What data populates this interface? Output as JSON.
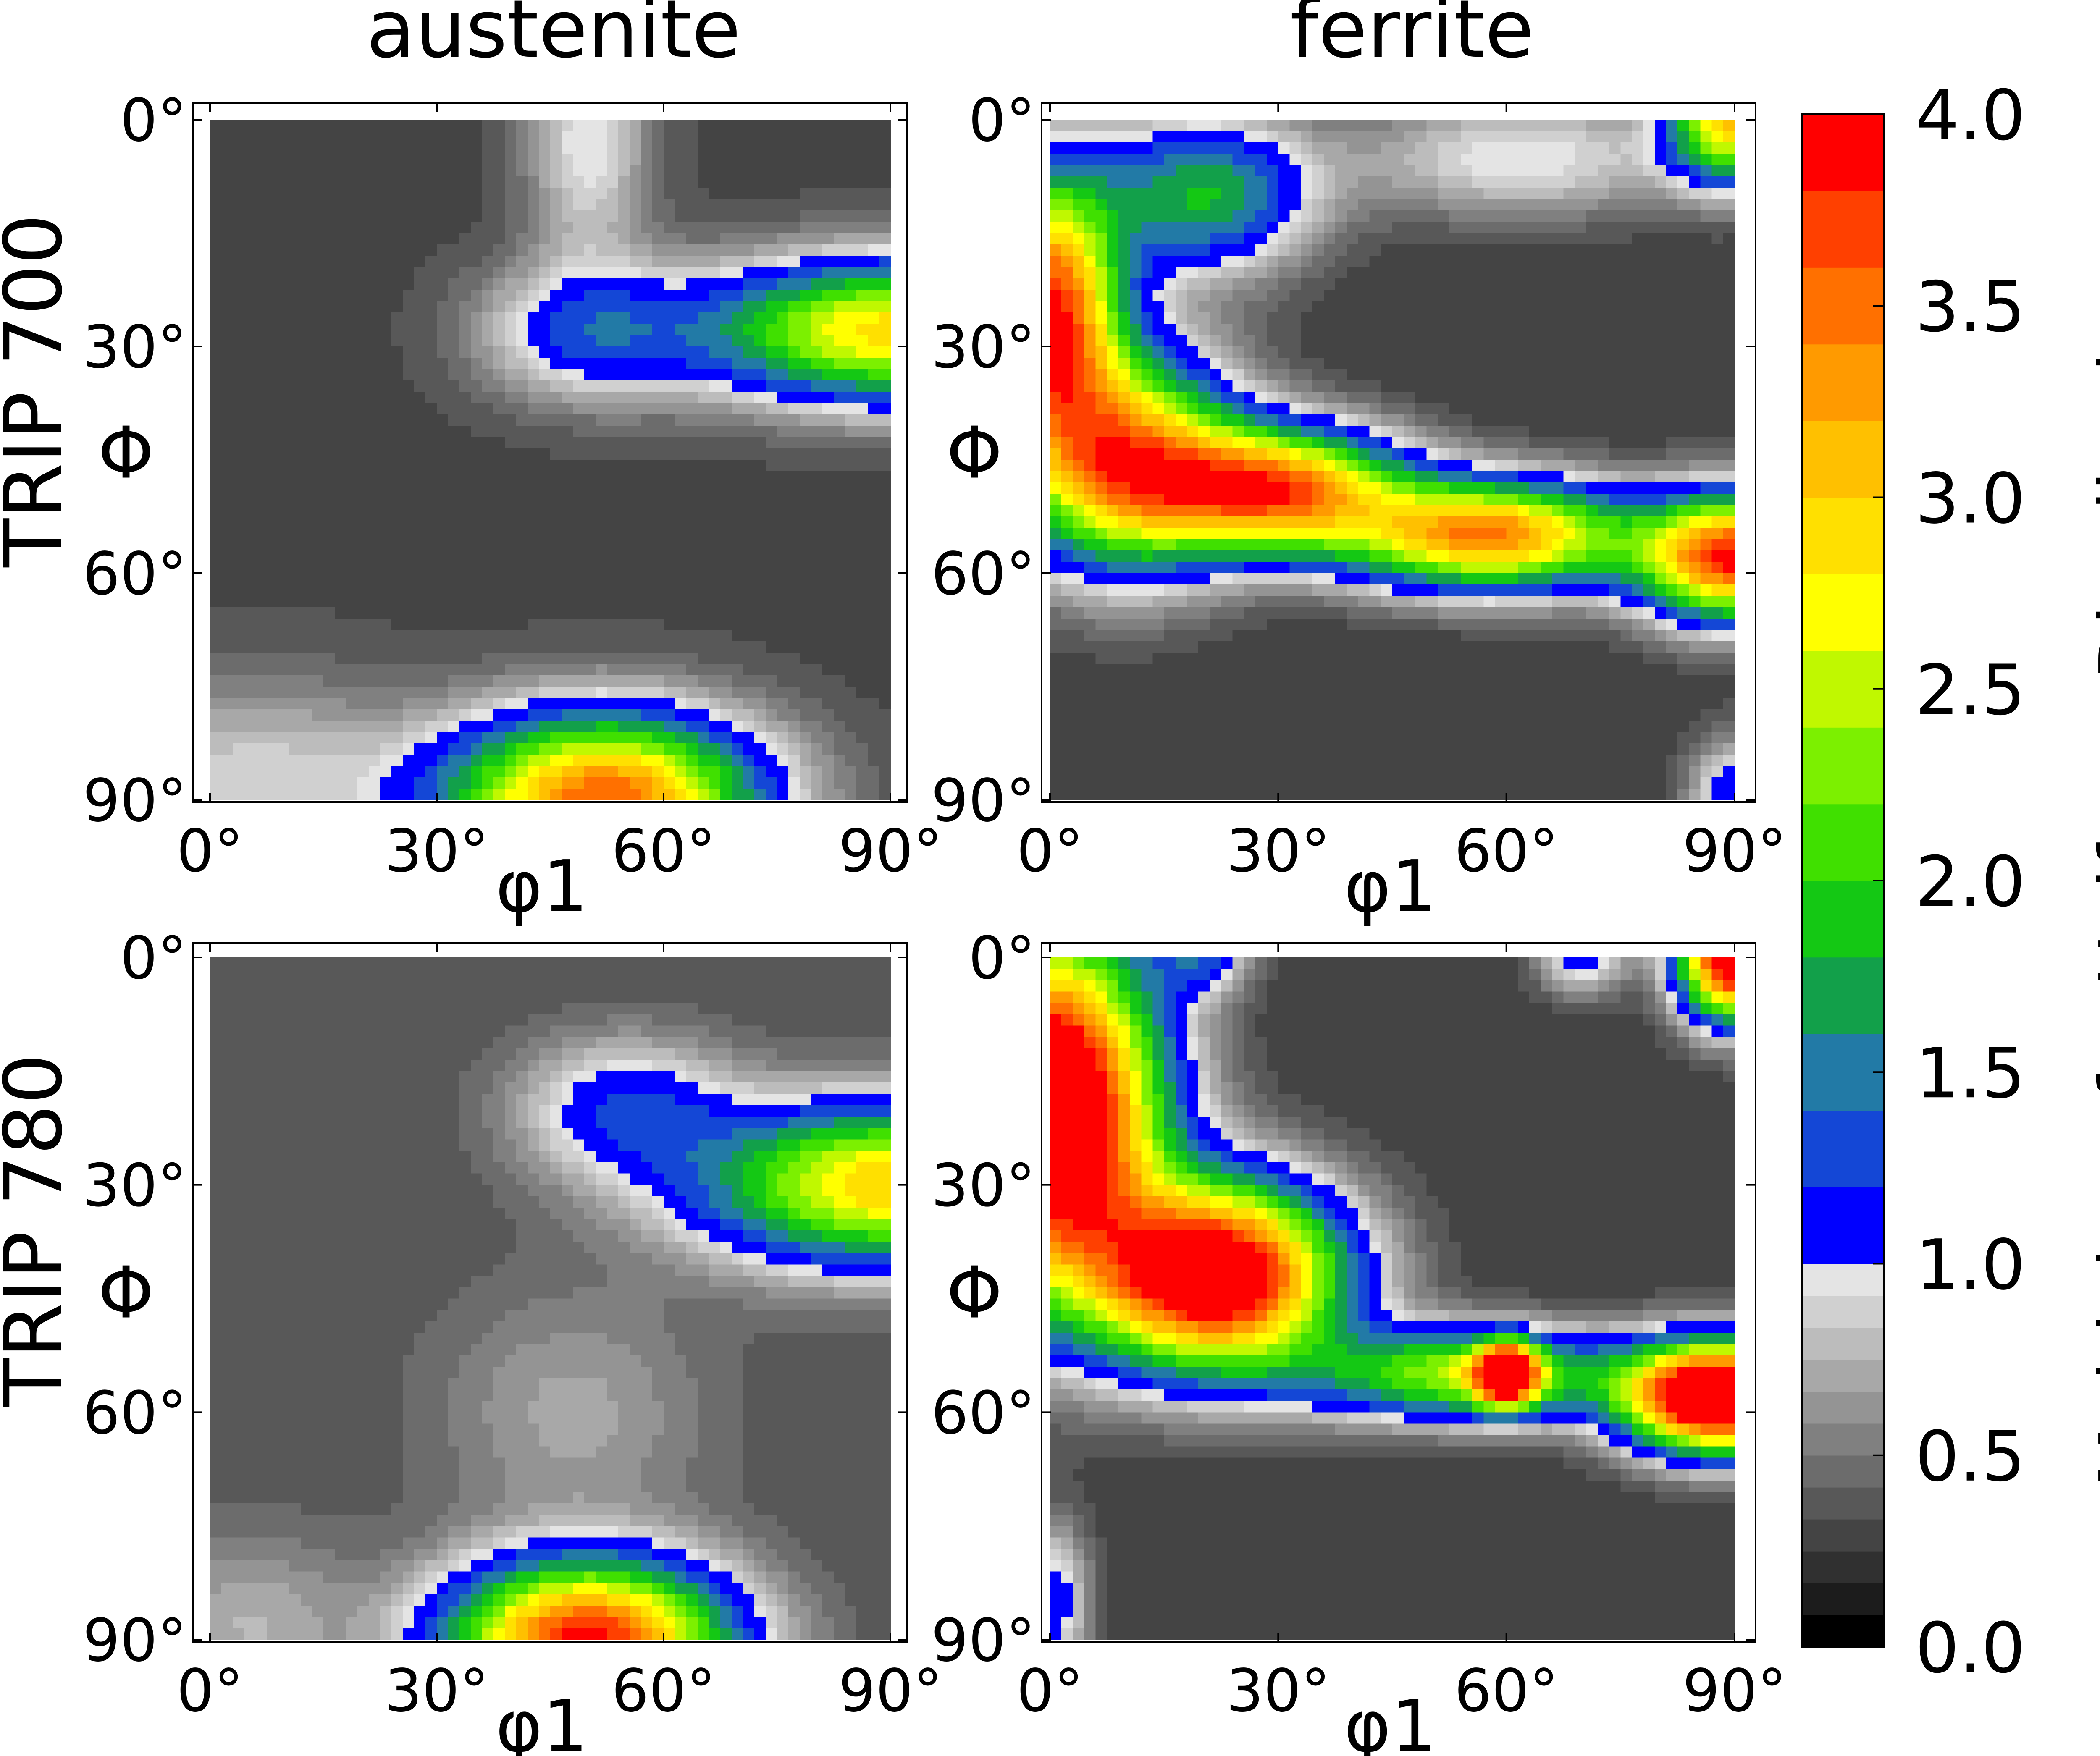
{
  "figure": {
    "columns": [
      "austenite",
      "ferrite"
    ],
    "rows": [
      "TRIP 700",
      "TRIP 780"
    ]
  },
  "colors": {
    "gray_levels": [
      "#000000",
      "#1c1c1c",
      "#303030",
      "#444444",
      "#585858",
      "#6c6c6c",
      "#808080",
      "#949494",
      "#a8a8a8",
      "#bcbcbc",
      "#d0d0d0",
      "#e4e4e4"
    ],
    "above_one": [
      "#0000ff",
      "#1447d6",
      "#227aa6",
      "#12a04a",
      "#14c814",
      "#40e000",
      "#7cf000",
      "#c0f800",
      "#ffff00",
      "#ffe000",
      "#ffc000",
      "#ff9a00",
      "#ff7000",
      "#ff4000",
      "#ff0000"
    ]
  },
  "colorbar": {
    "label": "Multiples of a Uniform Distribution",
    "ticks": [
      "0.0",
      "0.5",
      "1.0",
      "1.5",
      "2.0",
      "2.5",
      "3.0",
      "3.5",
      "4.0"
    ],
    "min": 0.0,
    "max": 4.0
  },
  "chart_data": [
    {
      "type": "heatmap",
      "panel": "austenite, TRIP 700",
      "xlabel": "φ1",
      "ylabel": "Φ",
      "xticks": [
        "0°",
        "30°",
        "60°",
        "90°"
      ],
      "yticks": [
        "0°",
        "30°",
        "60°",
        "90°"
      ],
      "xlim": [
        0,
        90
      ],
      "ylim": [
        0,
        90
      ],
      "background": 0.3,
      "peaks": [
        {
          "x": 52,
          "y": 90,
          "sx": 20,
          "sy": 11,
          "v": 3.6
        },
        {
          "x": 90,
          "y": 28,
          "sx": 24,
          "sy": 9,
          "v": 2.9
        },
        {
          "x": 50,
          "y": 28,
          "sx": 14,
          "sy": 9,
          "v": 1.2
        },
        {
          "x": 50,
          "y": 3,
          "sx": 8,
          "sy": 15,
          "v": 1.0
        },
        {
          "x": 5,
          "y": 88,
          "sx": 22,
          "sy": 14,
          "v": 0.9
        }
      ]
    },
    {
      "type": "heatmap",
      "panel": "ferrite, TRIP 700",
      "xlabel": "φ1",
      "ylabel": "Φ",
      "xticks": [
        "0°",
        "30°",
        "60°",
        "90°"
      ],
      "yticks": [
        "0°",
        "30°",
        "60°",
        "90°"
      ],
      "xlim": [
        0,
        90
      ],
      "ylim": [
        0,
        90
      ],
      "background": 0.25,
      "peaks": [
        {
          "x": 0,
          "y": 25,
          "sx": 9,
          "sy": 17,
          "v": 3.7
        },
        {
          "x": 10,
          "y": 45,
          "sx": 14,
          "sy": 14,
          "v": 3.2
        },
        {
          "x": 30,
          "y": 49,
          "sx": 16,
          "sy": 8,
          "v": 3.4
        },
        {
          "x": 58,
          "y": 55,
          "sx": 18,
          "sy": 7,
          "v": 3.4
        },
        {
          "x": 90,
          "y": 58,
          "sx": 12,
          "sy": 8,
          "v": 3.8
        },
        {
          "x": 20,
          "y": 10,
          "sx": 14,
          "sy": 10,
          "v": 1.8
        },
        {
          "x": 90,
          "y": 0,
          "sx": 8,
          "sy": 8,
          "v": 3.0
        },
        {
          "x": 90,
          "y": 90,
          "sx": 6,
          "sy": 8,
          "v": 1.2
        },
        {
          "x": 62,
          "y": 5,
          "sx": 22,
          "sy": 8,
          "v": 1.0
        }
      ]
    },
    {
      "type": "heatmap",
      "panel": "austenite, TRIP 780",
      "xlabel": "φ1",
      "ylabel": "Φ",
      "xticks": [
        "0°",
        "30°",
        "60°",
        "90°"
      ],
      "yticks": [
        "0°",
        "30°",
        "60°",
        "90°"
      ],
      "xlim": [
        0,
        90
      ],
      "ylim": [
        0,
        90
      ],
      "background": 0.35,
      "peaks": [
        {
          "x": 50,
          "y": 90,
          "sx": 18,
          "sy": 10,
          "v": 3.9
        },
        {
          "x": 90,
          "y": 30,
          "sx": 24,
          "sy": 10,
          "v": 3.0
        },
        {
          "x": 55,
          "y": 20,
          "sx": 14,
          "sy": 9,
          "v": 1.2
        },
        {
          "x": 48,
          "y": 60,
          "sx": 18,
          "sy": 16,
          "v": 0.7
        },
        {
          "x": 5,
          "y": 88,
          "sx": 14,
          "sy": 12,
          "v": 0.75
        }
      ]
    },
    {
      "type": "heatmap",
      "panel": "ferrite, TRIP 780",
      "xlabel": "φ1",
      "ylabel": "Φ",
      "xticks": [
        "0°",
        "30°",
        "60°",
        "90°"
      ],
      "yticks": [
        "0°",
        "30°",
        "60°",
        "90°"
      ],
      "xlim": [
        0,
        90
      ],
      "ylim": [
        0,
        90
      ],
      "background": 0.25,
      "peaks": [
        {
          "x": 0,
          "y": 20,
          "sx": 14,
          "sy": 22,
          "v": 5.0
        },
        {
          "x": 22,
          "y": 42,
          "sx": 16,
          "sy": 12,
          "v": 4.5
        },
        {
          "x": 55,
          "y": 55,
          "sx": 20,
          "sy": 6,
          "v": 2.4
        },
        {
          "x": 60,
          "y": 55,
          "sx": 4,
          "sy": 4,
          "v": 3.6
        },
        {
          "x": 88,
          "y": 58,
          "sx": 12,
          "sy": 7,
          "v": 5.0
        },
        {
          "x": 90,
          "y": 0,
          "sx": 7,
          "sy": 8,
          "v": 4.5
        },
        {
          "x": 20,
          "y": 0,
          "sx": 6,
          "sy": 5,
          "v": 1.1
        },
        {
          "x": 70,
          "y": 0,
          "sx": 6,
          "sy": 5,
          "v": 1.1
        },
        {
          "x": 0,
          "y": 85,
          "sx": 5,
          "sy": 10,
          "v": 1.2
        }
      ]
    }
  ]
}
